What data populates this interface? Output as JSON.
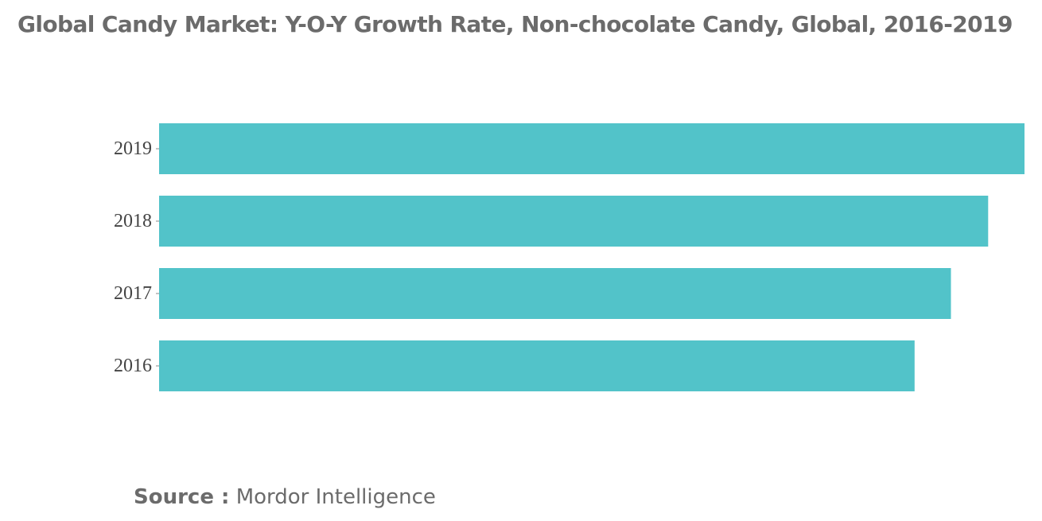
{
  "chart_data": {
    "type": "bar",
    "orientation": "horizontal",
    "title": "Global Candy Market: Y-O-Y Growth Rate, Non-chocolate Candy, Global, 2016-2019",
    "categories": [
      "2019",
      "2018",
      "2017",
      "2016"
    ],
    "values": [
      100,
      95.8,
      91.5,
      87.3
    ],
    "xlim": [
      0,
      100
    ],
    "xlabel": "",
    "ylabel": "",
    "grid": false,
    "legend": "none",
    "bar_color": "#52c3c9"
  },
  "source": {
    "label": "Source :",
    "text": "Mordor Intelligence"
  }
}
